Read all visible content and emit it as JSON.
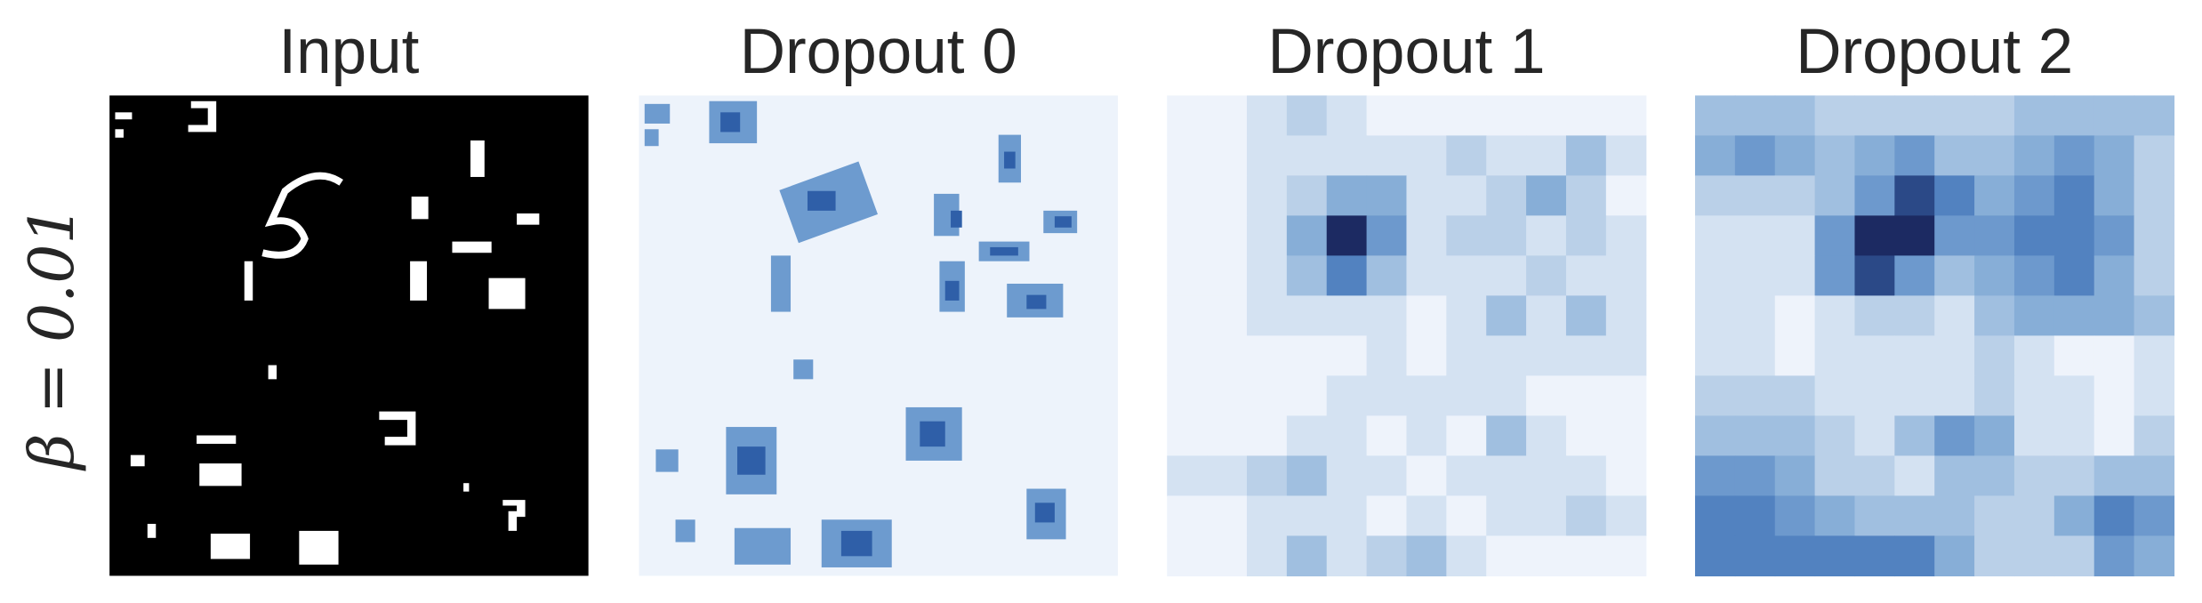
{
  "chart_data": [
    {
      "type": "image",
      "title": "Input",
      "ylabel": "β = 0.01"
    },
    {
      "type": "image",
      "title": "Dropout 0"
    },
    {
      "type": "heatmap",
      "title": "Dropout 1",
      "vlim": [
        0,
        9
      ],
      "colors": [
        "#eef3fb",
        "#b3cce6",
        "#7ba5d3",
        "#3d70b6",
        "#1c2a62"
      ],
      "values": [
        [
          0,
          0,
          1,
          2,
          1,
          0,
          0,
          0,
          0,
          0,
          0,
          0
        ],
        [
          0,
          0,
          1,
          1,
          1,
          1,
          1,
          2,
          1,
          1,
          3,
          1
        ],
        [
          0,
          0,
          1,
          2,
          4,
          4,
          1,
          1,
          2,
          4,
          2,
          0
        ],
        [
          0,
          0,
          1,
          4,
          9,
          5,
          1,
          2,
          2,
          1,
          2,
          1
        ],
        [
          0,
          0,
          1,
          3,
          6,
          3,
          1,
          1,
          1,
          2,
          1,
          1
        ],
        [
          0,
          0,
          1,
          1,
          1,
          1,
          0,
          1,
          3,
          1,
          3,
          1
        ],
        [
          0,
          0,
          0,
          0,
          0,
          1,
          0,
          1,
          1,
          1,
          1,
          1
        ],
        [
          0,
          0,
          0,
          0,
          1,
          1,
          1,
          1,
          1,
          0,
          0,
          0
        ],
        [
          0,
          0,
          0,
          1,
          1,
          0,
          1,
          0,
          3,
          1,
          0,
          0
        ],
        [
          1,
          1,
          2,
          3,
          1,
          1,
          0,
          1,
          1,
          1,
          1,
          0
        ],
        [
          0,
          0,
          1,
          1,
          1,
          0,
          1,
          0,
          1,
          1,
          2,
          1
        ],
        [
          0,
          0,
          1,
          3,
          1,
          2,
          3,
          1,
          0,
          0,
          0,
          0
        ]
      ]
    },
    {
      "type": "heatmap",
      "title": "Dropout 2",
      "vlim": [
        0,
        9
      ],
      "colors": [
        "#eef3fb",
        "#b3cce6",
        "#7ba5d3",
        "#3d70b6",
        "#1c2a62"
      ],
      "values": [
        [
          3,
          3,
          3,
          2,
          2,
          2,
          2,
          2,
          3,
          3,
          3,
          3
        ],
        [
          4,
          5,
          4,
          3,
          4,
          5,
          3,
          3,
          4,
          5,
          4,
          2
        ],
        [
          2,
          2,
          2,
          3,
          5,
          8,
          6,
          4,
          5,
          6,
          4,
          2
        ],
        [
          1,
          1,
          1,
          5,
          9,
          9,
          5,
          5,
          6,
          6,
          5,
          2
        ],
        [
          1,
          1,
          1,
          5,
          8,
          5,
          3,
          4,
          5,
          6,
          4,
          2
        ],
        [
          1,
          1,
          0,
          1,
          2,
          2,
          1,
          3,
          4,
          4,
          4,
          3
        ],
        [
          1,
          1,
          0,
          1,
          1,
          1,
          1,
          2,
          1,
          0,
          0,
          1
        ],
        [
          2,
          2,
          2,
          1,
          1,
          1,
          1,
          2,
          1,
          1,
          0,
          1
        ],
        [
          3,
          3,
          3,
          2,
          1,
          3,
          5,
          4,
          1,
          1,
          0,
          2
        ],
        [
          5,
          5,
          4,
          2,
          2,
          1,
          3,
          3,
          2,
          2,
          3,
          3
        ],
        [
          6,
          6,
          5,
          4,
          3,
          3,
          3,
          2,
          2,
          4,
          6,
          5
        ],
        [
          6,
          6,
          6,
          6,
          6,
          6,
          4,
          2,
          2,
          2,
          5,
          4
        ]
      ]
    }
  ]
}
